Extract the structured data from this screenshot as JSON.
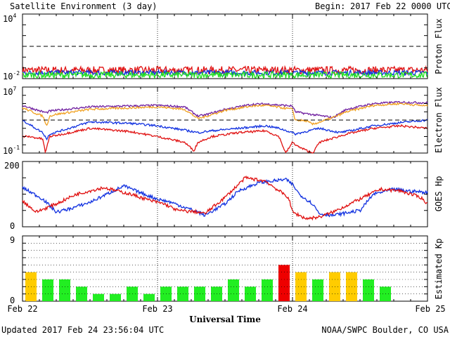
{
  "header": {
    "title": "Satellite Environment (3 day)",
    "begin_label": "Begin:",
    "begin_value": "2017 Feb 22 0000 UTC"
  },
  "footer": {
    "updated": "Updated 2017 Feb 24 23:56:04 UTC",
    "credit": "NOAA/SWPC Boulder, CO USA"
  },
  "x_axis": {
    "title": "Universal Time",
    "ticks": [
      "Feb 22",
      "Feb 23",
      "Feb 24",
      "Feb 25"
    ],
    "range_days": [
      0,
      3
    ]
  },
  "colors": {
    "red": "#e01010",
    "blue": "#1030e0",
    "green": "#20e020",
    "orange": "#f0a020",
    "purple": "#7020a0",
    "kp_green": "#22ee22",
    "kp_yellow": "#ffcc00",
    "kp_red": "#ee0000"
  },
  "chart_data": [
    {
      "type": "line",
      "ylabel": "Proton Flux",
      "yscale": "log",
      "ylim": [
        0.01,
        10000
      ],
      "ytick_labels": [
        {
          "base": "10",
          "exp": "4",
          "value": 10000
        },
        {
          "base": "10",
          "exp": "-2",
          "value": 0.01
        }
      ],
      "threshold": 10,
      "series": [
        {
          "color": "red",
          "level": 0.06,
          "jitter": 0.12
        },
        {
          "color": "blue",
          "level": 0.035,
          "jitter": 0.08
        },
        {
          "color": "green",
          "level": 0.022,
          "jitter": 0.1
        }
      ]
    },
    {
      "type": "line",
      "ylabel": "Electron Flux",
      "yscale": "log",
      "ylim": [
        0.1,
        10000000
      ],
      "ytick_labels": [
        {
          "base": "10",
          "exp": "7",
          "value": 10000000
        },
        {
          "base": "10",
          "exp": "-1",
          "value": 0.1
        }
      ],
      "threshold": 1000,
      "series": [
        {
          "color": "purple",
          "x": [
            0,
            0.15,
            0.18,
            0.2,
            0.25,
            0.5,
            1.0,
            1.2,
            1.3,
            1.35,
            1.5,
            1.7,
            1.8,
            2.0,
            2.02,
            2.1,
            2.3,
            2.4,
            2.6,
            2.8,
            3.0
          ],
          "y": [
            60000,
            10000,
            8000,
            12000,
            15000,
            40000,
            60000,
            40000,
            3000,
            4000,
            20000,
            80000,
            90000,
            50000,
            10000,
            6000,
            2000,
            20000,
            100000,
            150000,
            120000
          ]
        },
        {
          "color": "orange",
          "x": [
            0,
            0.15,
            0.18,
            0.2,
            0.25,
            0.5,
            1.0,
            1.2,
            1.3,
            1.35,
            1.5,
            1.7,
            1.8,
            2.0,
            2.02,
            2.1,
            2.15,
            2.3,
            2.4,
            2.6,
            2.8,
            3.0
          ],
          "y": [
            30000,
            3000,
            200,
            3000,
            5000,
            20000,
            40000,
            20000,
            1500,
            2500,
            15000,
            50000,
            60000,
            20000,
            1000,
            800,
            300,
            2000,
            10000,
            60000,
            100000,
            50000
          ]
        },
        {
          "color": "blue",
          "x": [
            0,
            0.05,
            0.15,
            0.18,
            0.2,
            0.3,
            0.5,
            0.8,
            1.0,
            1.2,
            1.3,
            1.4,
            1.6,
            1.8,
            1.9,
            2.0,
            2.02,
            2.2,
            2.35,
            2.45,
            2.6,
            2.8,
            3.0
          ],
          "y": [
            1000,
            300,
            30,
            5,
            20,
            60,
            600,
            400,
            200,
            60,
            30,
            50,
            100,
            200,
            100,
            30,
            20,
            100,
            30,
            60,
            200,
            500,
            1000
          ]
        },
        {
          "color": "red",
          "x": [
            0,
            0.05,
            0.15,
            0.17,
            0.2,
            0.3,
            0.5,
            0.8,
            1.0,
            1.2,
            1.27,
            1.3,
            1.4,
            1.6,
            1.8,
            1.9,
            1.95,
            2.0,
            2.05,
            2.15,
            2.2,
            2.4,
            2.6,
            2.8,
            3.0
          ],
          "y": [
            10,
            10,
            5,
            0.1,
            10,
            20,
            100,
            40,
            10,
            2,
            0.2,
            2,
            10,
            30,
            50,
            10,
            0.1,
            2,
            0.5,
            0.1,
            2,
            20,
            100,
            200,
            100
          ]
        }
      ]
    },
    {
      "type": "line",
      "ylabel": "GOES Hp",
      "ylim": [
        0,
        200
      ],
      "yticks": [
        0,
        200
      ],
      "series": [
        {
          "color": "blue",
          "x": [
            0,
            0.15,
            0.25,
            0.35,
            0.5,
            0.75,
            0.9,
            1.0,
            1.1,
            1.2,
            1.3,
            1.35,
            1.5,
            1.6,
            1.75,
            1.85,
            1.95,
            2.0,
            2.05,
            2.15,
            2.2,
            2.3,
            2.5,
            2.6,
            2.75,
            2.85,
            3.0
          ],
          "y": [
            120,
            85,
            45,
            55,
            75,
            125,
            100,
            85,
            75,
            60,
            45,
            35,
            70,
            110,
            135,
            140,
            145,
            130,
            100,
            70,
            40,
            35,
            50,
            100,
            115,
            110,
            105
          ]
        },
        {
          "color": "red",
          "x": [
            0,
            0.1,
            0.25,
            0.4,
            0.6,
            0.8,
            0.95,
            1.05,
            1.15,
            1.3,
            1.35,
            1.5,
            1.65,
            1.8,
            1.9,
            1.97,
            2.0,
            2.1,
            2.2,
            2.3,
            2.5,
            2.65,
            2.8,
            2.95,
            3.0
          ],
          "y": [
            80,
            45,
            70,
            100,
            120,
            100,
            80,
            70,
            50,
            45,
            40,
            90,
            150,
            140,
            110,
            90,
            45,
            25,
            30,
            45,
            85,
            115,
            110,
            90,
            70
          ]
        }
      ]
    },
    {
      "type": "bar",
      "ylabel": "Estimated Kp",
      "ylim": [
        0,
        9
      ],
      "yticks": [
        0,
        9
      ],
      "bar_width_hours": 3,
      "values": [
        4,
        3,
        3,
        2,
        1,
        1,
        2,
        1,
        2,
        2,
        2,
        2,
        3,
        2,
        3,
        5,
        4,
        3,
        4,
        4,
        3,
        2
      ],
      "bar_colors": [
        "kp_yellow",
        "kp_green",
        "kp_green",
        "kp_green",
        "kp_green",
        "kp_green",
        "kp_green",
        "kp_green",
        "kp_green",
        "kp_green",
        "kp_green",
        "kp_green",
        "kp_green",
        "kp_green",
        "kp_green",
        "kp_red",
        "kp_yellow",
        "kp_green",
        "kp_yellow",
        "kp_yellow",
        "kp_green",
        "kp_green"
      ]
    }
  ]
}
